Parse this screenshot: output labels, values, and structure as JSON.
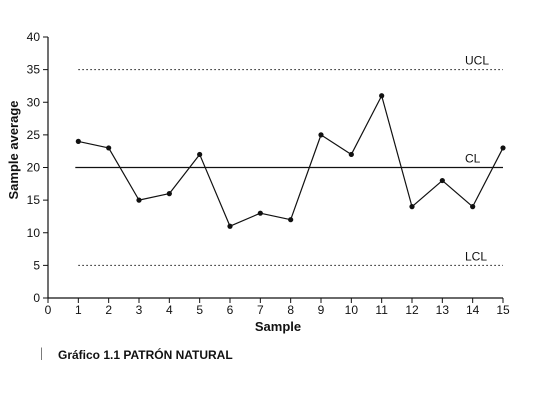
{
  "chart_data": {
    "type": "line",
    "xlabel": "Sample",
    "ylabel": "Sample average",
    "xlim": [
      0,
      15
    ],
    "ylim": [
      0,
      40
    ],
    "xticks": [
      "0",
      "1",
      "2",
      "3",
      "4",
      "5",
      "6",
      "7",
      "8",
      "9",
      "10",
      "11",
      "12",
      "13",
      "14",
      "15"
    ],
    "yticks": [
      "0",
      "5",
      "10",
      "15",
      "20",
      "25",
      "30",
      "35",
      "40"
    ],
    "x": [
      1,
      2,
      3,
      4,
      5,
      6,
      7,
      8,
      9,
      10,
      11,
      12,
      13,
      14,
      15
    ],
    "series": [
      {
        "values": [
          24,
          23,
          15,
          16,
          22,
          11,
          13,
          12,
          25,
          22,
          31,
          14,
          18,
          14,
          23
        ]
      }
    ],
    "control_lines": [
      {
        "label": "UCL",
        "value": 35,
        "style": "dotted"
      },
      {
        "label": "CL",
        "value": 20,
        "style": "solid"
      },
      {
        "label": "LCL",
        "value": 5,
        "style": "dotted"
      }
    ],
    "grid": false
  },
  "caption": {
    "mark": "|",
    "text": "Gráfico 1.1 PATRÓN NATURAL"
  },
  "colors": {
    "line": "#111111",
    "axis": "#111111"
  }
}
